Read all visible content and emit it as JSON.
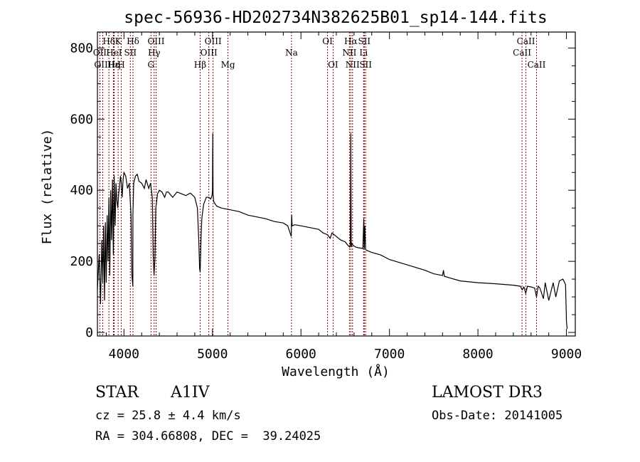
{
  "chart_data": {
    "type": "line",
    "title": "spec-56936-HD202734N382625B01_sp14-144.fits",
    "xlabel": "Wavelength (Å)",
    "ylabel": "Flux (relative)",
    "xlim": [
      3700,
      9100
    ],
    "ylim": [
      -10,
      845
    ],
    "xticks": [
      4000,
      5000,
      6000,
      7000,
      8000,
      9000
    ],
    "yticks": [
      0,
      200,
      400,
      600,
      800
    ],
    "series": [
      {
        "name": "spectrum",
        "x": [
          3700,
          3720,
          3735,
          3750,
          3760,
          3770,
          3780,
          3790,
          3800,
          3810,
          3820,
          3830,
          3840,
          3850,
          3860,
          3870,
          3880,
          3890,
          3900,
          3910,
          3920,
          3930,
          3940,
          3950,
          3960,
          3970,
          3980,
          3990,
          4000,
          4020,
          4040,
          4060,
          4080,
          4090,
          4100,
          4101,
          4110,
          4130,
          4150,
          4170,
          4200,
          4230,
          4250,
          4280,
          4300,
          4320,
          4330,
          4340,
          4350,
          4360,
          4380,
          4400,
          4430,
          4460,
          4480,
          4500,
          4550,
          4600,
          4650,
          4700,
          4750,
          4800,
          4830,
          4845,
          4855,
          4861,
          4870,
          4880,
          4900,
          4930,
          4960,
          4980,
          4995,
          5000,
          5003,
          5007,
          5012,
          5020,
          5050,
          5100,
          5200,
          5300,
          5400,
          5500,
          5600,
          5700,
          5800,
          5850,
          5890,
          5895,
          5900,
          5930,
          6000,
          6100,
          6200,
          6250,
          6300,
          6330,
          6350,
          6400,
          6450,
          6500,
          6530,
          6550,
          6558,
          6563,
          6568,
          6575,
          6590,
          6600,
          6620,
          6650,
          6680,
          6700,
          6710,
          6716,
          6722,
          6730,
          6750,
          6800,
          6900,
          7000,
          7200,
          7400,
          7500,
          7600,
          7610,
          7620,
          7700,
          7800,
          8000,
          8200,
          8400,
          8480,
          8500,
          8520,
          8540,
          8560,
          8600,
          8640,
          8662,
          8680,
          8700,
          8740,
          8760,
          8800,
          8850,
          8880,
          8920,
          8960,
          8990,
          9000,
          9008
        ],
        "y": [
          120,
          220,
          80,
          260,
          140,
          300,
          90,
          310,
          140,
          330,
          200,
          380,
          160,
          400,
          260,
          430,
          220,
          440,
          300,
          420,
          370,
          350,
          390,
          410,
          440,
          420,
          380,
          430,
          450,
          440,
          405,
          420,
          330,
          160,
          130,
          330,
          420,
          440,
          445,
          425,
          420,
          405,
          430,
          405,
          420,
          380,
          220,
          160,
          210,
          350,
          390,
          400,
          395,
          380,
          395,
          395,
          380,
          395,
          390,
          385,
          392,
          380,
          350,
          260,
          180,
          170,
          260,
          320,
          360,
          380,
          380,
          375,
          385,
          400,
          560,
          390,
          370,
          365,
          355,
          350,
          345,
          340,
          330,
          325,
          320,
          312,
          308,
          300,
          270,
          330,
          300,
          303,
          300,
          295,
          290,
          280,
          275,
          265,
          280,
          270,
          260,
          255,
          245,
          240,
          250,
          560,
          240,
          250,
          245,
          243,
          240,
          238,
          237,
          236,
          320,
          236,
          300,
          233,
          230,
          225,
          218,
          205,
          190,
          175,
          165,
          160,
          175,
          158,
          152,
          145,
          140,
          137,
          133,
          130,
          120,
          128,
          110,
          130,
          128,
          125,
          100,
          130,
          125,
          95,
          140,
          90,
          140,
          100,
          145,
          150,
          135,
          30,
          10
        ]
      }
    ],
    "emission_lines": [
      {
        "label": "Hδ",
        "x": 3830,
        "row": 1
      },
      {
        "label": "OII",
        "x": 3727,
        "row": 2
      },
      {
        "label": "OIII",
        "x": 3760,
        "row": 3
      },
      {
        "label": "Hε",
        "x": 3880,
        "row": 3
      },
      {
        "label": "Hη",
        "x": 3889,
        "row": 3
      },
      {
        "label": "K",
        "x": 3934,
        "row": 1
      },
      {
        "label": "HeI",
        "x": 3888,
        "row": 2
      },
      {
        "label": "H",
        "x": 3969,
        "row": 3
      },
      {
        "label": "SII",
        "x": 4072,
        "row": 2
      },
      {
        "label": "Hδ",
        "x": 4102,
        "row": 1
      },
      {
        "label": "OIII",
        "x": 4363,
        "row": 1
      },
      {
        "label": "Hγ",
        "x": 4341,
        "row": 2
      },
      {
        "label": "G",
        "x": 4305,
        "row": 3
      },
      {
        "label": "Hβ",
        "x": 4861,
        "row": 3
      },
      {
        "label": "OIII",
        "x": 5007,
        "row": 1
      },
      {
        "label": "OIII",
        "x": 4959,
        "row": 2
      },
      {
        "label": "Mg",
        "x": 5175,
        "row": 3
      },
      {
        "label": "Na",
        "x": 5893,
        "row": 2
      },
      {
        "label": "OI",
        "x": 6300,
        "row": 1
      },
      {
        "label": "OI",
        "x": 6363,
        "row": 3
      },
      {
        "label": "Hα",
        "x": 6563,
        "row": 1
      },
      {
        "label": "NII",
        "x": 6548,
        "row": 2
      },
      {
        "label": "NII",
        "x": 6583,
        "row": 3
      },
      {
        "label": "SII",
        "x": 6716,
        "row": 1
      },
      {
        "label": "Li",
        "x": 6708,
        "row": 2
      },
      {
        "label": "SII",
        "x": 6731,
        "row": 3
      },
      {
        "label": "CaII",
        "x": 8498,
        "row": 2
      },
      {
        "label": "CaII",
        "x": 8542,
        "row": 1
      },
      {
        "label": "CaII",
        "x": 8662,
        "row": 3
      }
    ]
  },
  "info": {
    "class": "STAR",
    "subclass": "A1IV",
    "survey": "LAMOST DR3",
    "cz": "cz = 25.8 ± 4.4 km/s",
    "obs_date": "Obs-Date: 20141005",
    "radec": "RA = 304.66808, DEC =  39.24025"
  },
  "colors": {
    "line_marker": "#8b0000",
    "spectrum": "#000000"
  }
}
